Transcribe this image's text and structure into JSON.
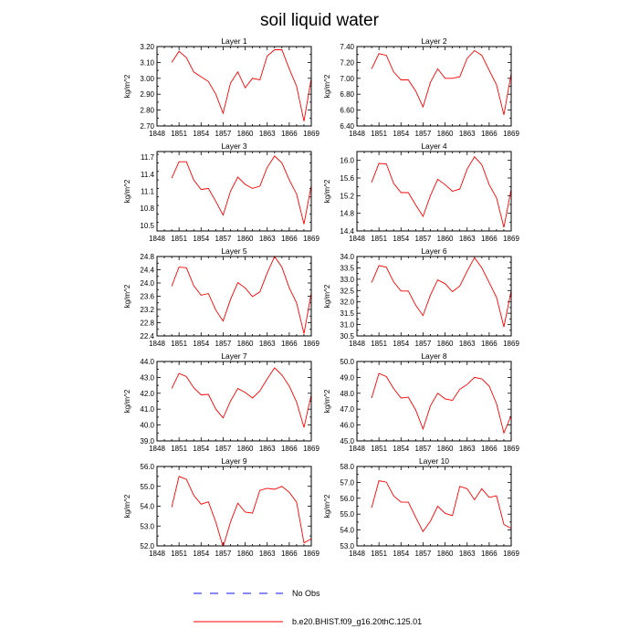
{
  "figure": {
    "title": "soil liquid water"
  },
  "chart_data": [
    {
      "type": "line",
      "title": "Layer 1",
      "ylabel": "kg/m^2",
      "xlim": [
        1848,
        1869
      ],
      "ylim": [
        2.7,
        3.2
      ],
      "xticks": [
        1848,
        1851,
        1854,
        1857,
        1860,
        1863,
        1866,
        1869
      ],
      "yticks": [
        2.7,
        2.8,
        2.9,
        3.0,
        3.1,
        3.2
      ],
      "ytick_labels": [
        "2.70",
        "2.80",
        "2.90",
        "3.00",
        "3.10",
        "3.20"
      ],
      "x": [
        1850,
        1851,
        1852,
        1853,
        1854,
        1855,
        1856,
        1857,
        1858,
        1859,
        1860,
        1861,
        1862,
        1863,
        1864,
        1865,
        1866,
        1867,
        1868,
        1869
      ],
      "series": [
        {
          "name": "b.e20.BHIST.f09_g16.20thC.125.01",
          "values": [
            3.1,
            3.17,
            3.13,
            3.04,
            3.01,
            2.98,
            2.9,
            2.78,
            2.97,
            3.04,
            2.94,
            3.0,
            2.99,
            3.14,
            3.18,
            3.18,
            3.06,
            2.95,
            2.73,
            3.0
          ]
        }
      ]
    },
    {
      "type": "line",
      "title": "Layer 2",
      "ylabel": "kg/m^2",
      "xlim": [
        1848,
        1869
      ],
      "ylim": [
        6.4,
        7.4
      ],
      "xticks": [
        1848,
        1851,
        1854,
        1857,
        1860,
        1863,
        1866,
        1869
      ],
      "yticks": [
        6.4,
        6.6,
        6.8,
        7.0,
        7.2,
        7.4
      ],
      "ytick_labels": [
        "6.40",
        "6.60",
        "6.80",
        "7.00",
        "7.20",
        "7.40"
      ],
      "x": [
        1850,
        1851,
        1852,
        1853,
        1854,
        1855,
        1856,
        1857,
        1858,
        1859,
        1860,
        1861,
        1862,
        1863,
        1864,
        1865,
        1866,
        1867,
        1868,
        1869
      ],
      "series": [
        {
          "name": "b.e20.BHIST.f09_g16.20thC.125.01",
          "values": [
            7.12,
            7.31,
            7.29,
            7.08,
            6.98,
            6.98,
            6.84,
            6.64,
            6.95,
            7.12,
            7.0,
            7.0,
            7.02,
            7.25,
            7.35,
            7.29,
            7.1,
            6.92,
            6.54,
            7.06
          ]
        }
      ]
    },
    {
      "type": "line",
      "title": "Layer 3",
      "ylabel": "kg/m^2",
      "xlim": [
        1848,
        1869
      ],
      "ylim": [
        10.4,
        11.8
      ],
      "xticks": [
        1848,
        1851,
        1854,
        1857,
        1860,
        1863,
        1866,
        1869
      ],
      "yticks": [
        10.5,
        10.8,
        11.1,
        11.4,
        11.7
      ],
      "ytick_labels": [
        "10.5",
        "10.8",
        "11.1",
        "11.4",
        "11.7"
      ],
      "x": [
        1850,
        1851,
        1852,
        1853,
        1854,
        1855,
        1856,
        1857,
        1858,
        1859,
        1860,
        1861,
        1862,
        1863,
        1864,
        1865,
        1866,
        1867,
        1868,
        1869
      ],
      "series": [
        {
          "name": "b.e20.BHIST.f09_g16.20thC.125.01",
          "values": [
            11.33,
            11.62,
            11.62,
            11.3,
            11.13,
            11.15,
            10.92,
            10.68,
            11.1,
            11.35,
            11.22,
            11.15,
            11.19,
            11.52,
            11.72,
            11.6,
            11.3,
            11.05,
            10.52,
            11.2
          ]
        }
      ]
    },
    {
      "type": "line",
      "title": "Layer 4",
      "ylabel": "kg/m^2",
      "xlim": [
        1848,
        1869
      ],
      "ylim": [
        14.4,
        16.2
      ],
      "xticks": [
        1848,
        1851,
        1854,
        1857,
        1860,
        1863,
        1866,
        1869
      ],
      "yticks": [
        14.4,
        14.8,
        15.2,
        15.6,
        16.0
      ],
      "ytick_labels": [
        "14.4",
        "14.8",
        "15.2",
        "15.6",
        "16.0"
      ],
      "x": [
        1850,
        1851,
        1852,
        1853,
        1854,
        1855,
        1856,
        1857,
        1858,
        1859,
        1860,
        1861,
        1862,
        1863,
        1864,
        1865,
        1866,
        1867,
        1868,
        1869
      ],
      "series": [
        {
          "name": "b.e20.BHIST.f09_g16.20thC.125.01",
          "values": [
            15.5,
            15.93,
            15.92,
            15.48,
            15.27,
            15.27,
            14.99,
            14.73,
            15.2,
            15.57,
            15.45,
            15.3,
            15.35,
            15.8,
            16.08,
            15.9,
            15.45,
            15.15,
            14.48,
            15.35
          ]
        }
      ]
    },
    {
      "type": "line",
      "title": "Layer 5",
      "ylabel": "kg/m^2",
      "xlim": [
        1848,
        1869
      ],
      "ylim": [
        22.4,
        24.8
      ],
      "xticks": [
        1848,
        1851,
        1854,
        1857,
        1860,
        1863,
        1866,
        1869
      ],
      "yticks": [
        22.4,
        22.8,
        23.2,
        23.6,
        24.0,
        24.4,
        24.8
      ],
      "ytick_labels": [
        "22.4",
        "22.8",
        "23.2",
        "23.6",
        "24.0",
        "24.4",
        "24.8"
      ],
      "x": [
        1850,
        1851,
        1852,
        1853,
        1854,
        1855,
        1856,
        1857,
        1858,
        1859,
        1860,
        1861,
        1862,
        1863,
        1864,
        1865,
        1866,
        1867,
        1868,
        1869
      ],
      "series": [
        {
          "name": "b.e20.BHIST.f09_g16.20thC.125.01",
          "values": [
            23.9,
            24.48,
            24.46,
            23.92,
            23.63,
            23.68,
            23.18,
            22.85,
            23.5,
            24.01,
            23.85,
            23.59,
            23.73,
            24.3,
            24.8,
            24.48,
            23.85,
            23.4,
            22.47,
            23.7
          ]
        }
      ]
    },
    {
      "type": "line",
      "title": "Layer 6",
      "ylabel": "kg/m^2",
      "xlim": [
        1848,
        1869
      ],
      "ylim": [
        30.5,
        34.0
      ],
      "xticks": [
        1848,
        1851,
        1854,
        1857,
        1860,
        1863,
        1866,
        1869
      ],
      "yticks": [
        30.5,
        31.0,
        31.5,
        32.0,
        32.5,
        33.0,
        33.5,
        34.0
      ],
      "ytick_labels": [
        "30.5",
        "31.0",
        "31.5",
        "32.0",
        "32.5",
        "33.0",
        "33.5",
        "34.0"
      ],
      "x": [
        1850,
        1851,
        1852,
        1853,
        1854,
        1855,
        1856,
        1857,
        1858,
        1859,
        1860,
        1861,
        1862,
        1863,
        1864,
        1865,
        1866,
        1867,
        1868,
        1869
      ],
      "series": [
        {
          "name": "b.e20.BHIST.f09_g16.20thC.125.01",
          "values": [
            32.85,
            33.6,
            33.53,
            32.88,
            32.48,
            32.48,
            31.85,
            31.4,
            32.3,
            32.97,
            32.8,
            32.45,
            32.7,
            33.35,
            33.95,
            33.5,
            32.85,
            32.2,
            30.9,
            32.5
          ]
        }
      ]
    },
    {
      "type": "line",
      "title": "Layer 7",
      "ylabel": "kg/m^2",
      "xlim": [
        1848,
        1869
      ],
      "ylim": [
        39.0,
        44.0
      ],
      "xticks": [
        1848,
        1851,
        1854,
        1857,
        1860,
        1863,
        1866,
        1869
      ],
      "yticks": [
        39.0,
        40.0,
        41.0,
        42.0,
        43.0,
        44.0
      ],
      "ytick_labels": [
        "39.0",
        "40.0",
        "41.0",
        "42.0",
        "43.0",
        "44.0"
      ],
      "x": [
        1850,
        1851,
        1852,
        1853,
        1854,
        1855,
        1856,
        1857,
        1858,
        1859,
        1860,
        1861,
        1862,
        1863,
        1864,
        1865,
        1866,
        1867,
        1868,
        1869
      ],
      "series": [
        {
          "name": "b.e20.BHIST.f09_g16.20thC.125.01",
          "values": [
            42.3,
            43.25,
            43.05,
            42.35,
            41.9,
            41.93,
            41.0,
            40.45,
            41.5,
            42.3,
            42.05,
            41.7,
            42.15,
            42.9,
            43.6,
            43.15,
            42.45,
            41.45,
            39.85,
            41.9
          ]
        }
      ]
    },
    {
      "type": "line",
      "title": "Layer 8",
      "ylabel": "kg/m^2",
      "xlim": [
        1848,
        1869
      ],
      "ylim": [
        45.0,
        50.0
      ],
      "xticks": [
        1848,
        1851,
        1854,
        1857,
        1860,
        1863,
        1866,
        1869
      ],
      "yticks": [
        45.0,
        46.0,
        47.0,
        48.0,
        49.0,
        50.0
      ],
      "ytick_labels": [
        "45.0",
        "46.0",
        "47.0",
        "48.0",
        "49.0",
        "50.0"
      ],
      "x": [
        1850,
        1851,
        1852,
        1853,
        1854,
        1855,
        1856,
        1857,
        1858,
        1859,
        1860,
        1861,
        1862,
        1863,
        1864,
        1865,
        1866,
        1867,
        1868,
        1869
      ],
      "series": [
        {
          "name": "b.e20.BHIST.f09_g16.20thC.125.01",
          "values": [
            47.7,
            49.25,
            49.05,
            48.3,
            47.7,
            47.75,
            46.95,
            45.75,
            47.2,
            48.0,
            47.65,
            47.55,
            48.25,
            48.55,
            49.0,
            48.9,
            48.45,
            47.35,
            45.5,
            46.6
          ]
        }
      ]
    },
    {
      "type": "line",
      "title": "Layer 9",
      "ylabel": "kg/m^2",
      "xlim": [
        1848,
        1869
      ],
      "ylim": [
        52.0,
        56.0
      ],
      "xticks": [
        1848,
        1851,
        1854,
        1857,
        1860,
        1863,
        1866,
        1869
      ],
      "yticks": [
        52.0,
        53.0,
        54.0,
        55.0,
        56.0
      ],
      "ytick_labels": [
        "52.0",
        "53.0",
        "54.0",
        "55.0",
        "56.0"
      ],
      "x": [
        1850,
        1851,
        1852,
        1853,
        1854,
        1855,
        1856,
        1857,
        1858,
        1859,
        1860,
        1861,
        1862,
        1863,
        1864,
        1865,
        1866,
        1867,
        1868,
        1869
      ],
      "series": [
        {
          "name": "b.e20.BHIST.f09_g16.20thC.125.01",
          "values": [
            53.95,
            55.5,
            55.35,
            54.55,
            54.1,
            54.22,
            53.2,
            51.95,
            53.2,
            54.15,
            53.7,
            53.65,
            54.8,
            54.9,
            54.85,
            55.0,
            54.7,
            54.2,
            52.15,
            52.35
          ]
        }
      ]
    },
    {
      "type": "line",
      "title": "Layer 10",
      "ylabel": "kg/m^2",
      "xlim": [
        1848,
        1869
      ],
      "ylim": [
        53.0,
        58.0
      ],
      "xticks": [
        1848,
        1851,
        1854,
        1857,
        1860,
        1863,
        1866,
        1869
      ],
      "yticks": [
        53.0,
        54.0,
        55.0,
        56.0,
        57.0,
        58.0
      ],
      "ytick_labels": [
        "53.0",
        "54.0",
        "55.0",
        "56.0",
        "57.0",
        "58.0"
      ],
      "x": [
        1850,
        1851,
        1852,
        1853,
        1854,
        1855,
        1856,
        1857,
        1858,
        1859,
        1860,
        1861,
        1862,
        1863,
        1864,
        1865,
        1866,
        1867,
        1868,
        1869
      ],
      "series": [
        {
          "name": "b.e20.BHIST.f09_g16.20thC.125.01",
          "values": [
            55.4,
            57.1,
            57.02,
            56.15,
            55.75,
            55.75,
            54.8,
            53.9,
            54.55,
            55.5,
            55.05,
            54.9,
            56.75,
            56.6,
            55.9,
            56.6,
            56.05,
            56.15,
            54.35,
            54.1
          ]
        }
      ]
    }
  ],
  "legend": {
    "entries": [
      {
        "label": "No Obs",
        "style": "dashed",
        "color": "#1010ff"
      },
      {
        "label": "b.e20.BHIST.f09_g16.20thC.125.01",
        "style": "solid",
        "color": "#ff0000"
      }
    ]
  },
  "colors": {
    "series_line": "#ff0000",
    "axes": "#000000"
  }
}
